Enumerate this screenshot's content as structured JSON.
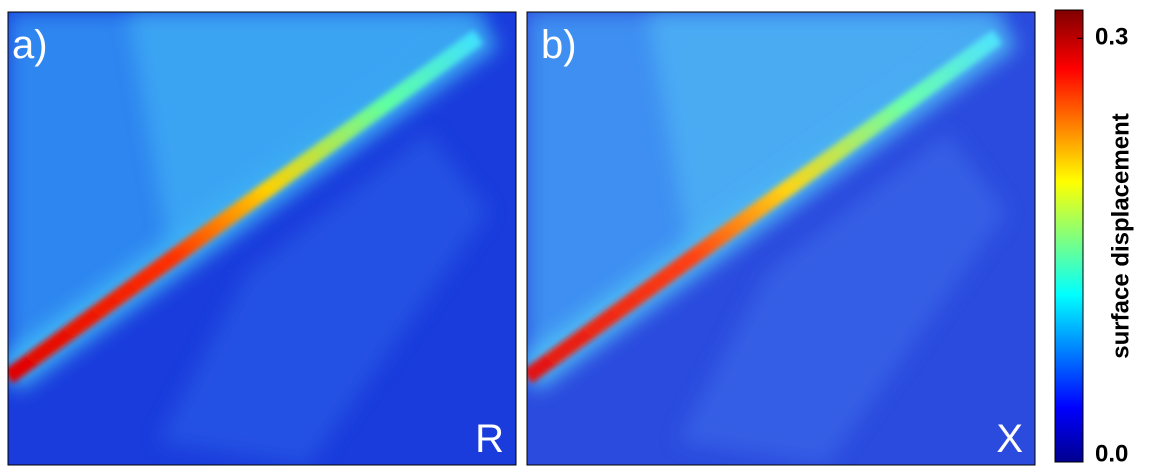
{
  "panels": [
    {
      "label": "a)",
      "corner_label": "R"
    },
    {
      "label": "b)",
      "corner_label": "X"
    }
  ],
  "colorbar": {
    "label": "surface displacement",
    "lim": [
      0,
      0.32
    ],
    "ticks": [
      {
        "value": 0,
        "label": "0.0"
      },
      0.3
    ]
  }
}
